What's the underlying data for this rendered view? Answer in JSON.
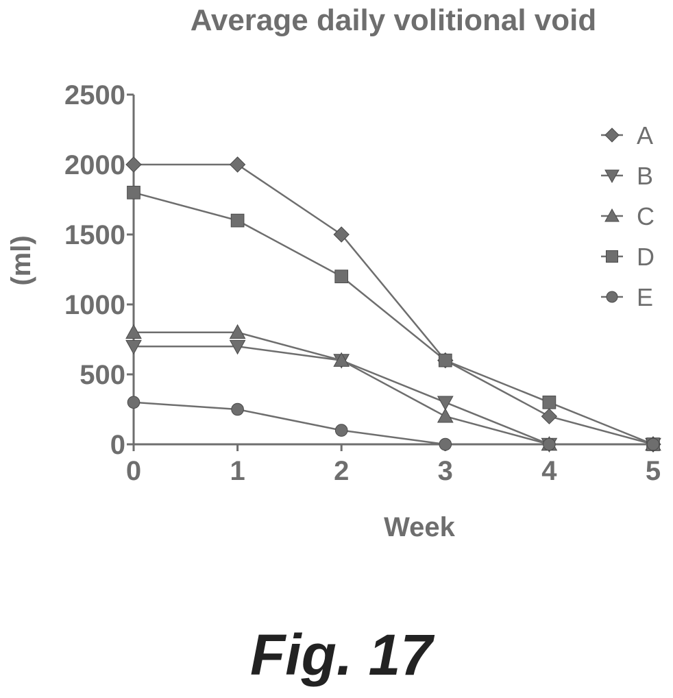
{
  "figure": {
    "caption": "Fig. 17"
  },
  "chart_data": {
    "type": "line",
    "title": "Average daily volitional void",
    "xlabel": "Week",
    "ylabel": "(ml)",
    "x": [
      0,
      1,
      2,
      3,
      4,
      5
    ],
    "xlim": [
      0,
      5
    ],
    "ylim": [
      0,
      2500
    ],
    "y_ticks": [
      "0",
      "500",
      "1000",
      "1500",
      "2000",
      "2500"
    ],
    "x_ticks": [
      "0",
      "1",
      "2",
      "3",
      "4",
      "5"
    ],
    "grid": false,
    "legend_position": "right",
    "series": [
      {
        "name": "A",
        "marker": "diamond",
        "values": [
          2000,
          2000,
          1500,
          600,
          200,
          0
        ]
      },
      {
        "name": "B",
        "marker": "triangle-down",
        "values": [
          700,
          700,
          600,
          300,
          0,
          0
        ]
      },
      {
        "name": "C",
        "marker": "triangle-up",
        "values": [
          800,
          800,
          600,
          200,
          0,
          0
        ]
      },
      {
        "name": "D",
        "marker": "square",
        "values": [
          1800,
          1600,
          1200,
          600,
          300,
          0
        ]
      },
      {
        "name": "E",
        "marker": "circle",
        "values": [
          300,
          250,
          100,
          0,
          0,
          0
        ]
      }
    ]
  }
}
